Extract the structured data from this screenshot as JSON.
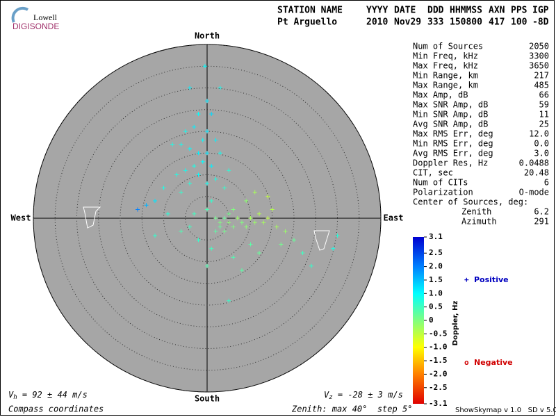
{
  "logo": {
    "top": "Lowell",
    "bottom": "DIGISONDE"
  },
  "header": {
    "columns": [
      "STATION NAME",
      "YYYY",
      "DATE",
      "DDD",
      "HHMMSS",
      "AXN",
      "PPS",
      "IGP"
    ],
    "values": [
      "Pt Arguello",
      "2010",
      "Nov29",
      "333",
      "150800",
      "417",
      "100",
      "-8D"
    ]
  },
  "stats": [
    [
      "Num of Sources",
      "2050"
    ],
    [
      "Min Freq, kHz",
      "3300"
    ],
    [
      "Max Freq, kHz",
      "3650"
    ],
    [
      "Min Range, km",
      "217"
    ],
    [
      "Max Range, km",
      "485"
    ],
    [
      "Max Amp, dB",
      "66"
    ],
    [
      "Max SNR Amp, dB",
      "59"
    ],
    [
      "Min SNR Amp, dB",
      "11"
    ],
    [
      "Avg SNR Amp, dB",
      "25"
    ],
    [
      "Max RMS Err, deg",
      "12.0"
    ],
    [
      "Min RMS Err, deg",
      "0.0"
    ],
    [
      "Avg RMS Err, deg",
      "3.0"
    ],
    [
      "Doppler Res, Hz",
      "0.0488"
    ],
    [
      "CIT, sec",
      "20.48"
    ],
    [
      "Num of CITs",
      "6"
    ],
    [
      "Polarization",
      "O-mode"
    ]
  ],
  "center": {
    "title": "Center of Sources, deg:",
    "rows": [
      [
        "Zenith",
        "6.2"
      ],
      [
        "Azimuth",
        "291"
      ]
    ]
  },
  "footer": {
    "vh": {
      "symbol": "V",
      "sub": "h",
      "text": " = 92 ± 44 m/s"
    },
    "vz": {
      "symbol": "V",
      "sub": "z",
      "text": " = -28 ± 3 m/s"
    },
    "coords": "Compass coordinates",
    "zenith": "Zenith: max 40°  step 5°",
    "version": "ShowSkymap v 1.0   SD v 5.0"
  },
  "chart_data": {
    "type": "skymap",
    "directions": {
      "north": "North",
      "south": "South",
      "east": "East",
      "west": "West"
    },
    "rlim": [
      0,
      40
    ],
    "rticks": [
      5,
      10,
      15,
      20,
      25,
      30,
      35,
      40
    ],
    "points": {
      "x": [
        -0.5,
        3,
        -4,
        0,
        -2,
        1,
        -3,
        -5,
        0,
        -1,
        2,
        -6,
        -8,
        -4,
        -2,
        0,
        3,
        -1,
        1,
        -3,
        -5,
        5,
        -7,
        -2,
        2,
        0,
        -4,
        -10,
        4,
        -6,
        -12,
        -14,
        -16,
        2,
        3,
        4,
        5,
        6,
        3,
        4,
        7,
        8,
        2,
        5,
        6,
        9,
        10,
        11,
        12,
        13,
        14,
        15,
        16,
        18,
        20,
        17,
        10,
        12,
        6,
        1,
        -2,
        -4,
        0,
        8,
        5,
        22,
        29,
        30,
        -6,
        -3,
        0,
        1,
        9,
        11,
        14,
        -9,
        24,
        -12
      ],
      "y": [
        35,
        30,
        30,
        27,
        24,
        24,
        21,
        20,
        20,
        18,
        18,
        17,
        17,
        16,
        15,
        15,
        15,
        13,
        12,
        12,
        11,
        11,
        10,
        10,
        9,
        8,
        8,
        7,
        7,
        6,
        4,
        3,
        2,
        0,
        -1,
        0,
        -1,
        -2,
        -2,
        -3,
        0,
        -1,
        -3,
        1,
        2,
        -2,
        0,
        -1,
        1,
        -1,
        0,
        2,
        -2,
        -3,
        -5,
        -6,
        -6,
        -8,
        -9,
        -7,
        -5,
        -2,
        -11,
        -12,
        -19,
        -8,
        -7,
        -4,
        -3,
        1,
        2,
        4,
        4,
        6,
        5,
        1,
        -11,
        -4
      ],
      "doppler": [
        1.0,
        0.9,
        1.1,
        1.2,
        1.0,
        1.3,
        1.1,
        0.9,
        1.2,
        1.0,
        1.1,
        0.9,
        0.8,
        1.0,
        1.1,
        1.2,
        0.9,
        1.0,
        1.1,
        0.8,
        0.9,
        0.7,
        0.8,
        1.0,
        0.8,
        0.9,
        0.7,
        0.8,
        0.6,
        0.6,
        1.2,
        1.6,
        2.0,
        0.1,
        0.0,
        0.2,
        -0.1,
        0.0,
        0.2,
        0.1,
        -0.2,
        0.0,
        0.3,
        0.1,
        0.0,
        -0.1,
        -0.3,
        -0.2,
        -0.4,
        -0.3,
        -0.5,
        -0.4,
        -0.3,
        -0.2,
        0.2,
        0.1,
        0.3,
        0.2,
        0.4,
        0.5,
        0.6,
        0.5,
        0.4,
        0.3,
        0.6,
        0.5,
        0.8,
        0.7,
        0.4,
        0.5,
        0.4,
        0.6,
        -0.1,
        -0.3,
        -0.5,
        0.7,
        0.6,
        0.6
      ]
    },
    "colorbar": {
      "label": "Doppler, Hz",
      "lim": [
        -3.1,
        3.1
      ],
      "ticks": [
        3.1,
        2.5,
        {
          "value": 2.0,
          "label": "2.0"
        },
        1.5,
        {
          "value": 1.0,
          "label": "1.0"
        },
        0.5,
        0,
        -0.5,
        {
          "value": -1.0,
          "label": "-1.0"
        },
        -1.5,
        {
          "value": -2.0,
          "label": "-2.0"
        },
        -2.5,
        -3.1
      ],
      "colorscale": [
        [
          -3.1,
          "#e00000"
        ],
        [
          -2.0,
          "#ff8000"
        ],
        [
          -1.0,
          "#ffff00"
        ],
        [
          0,
          "#80ff80"
        ],
        [
          1.0,
          "#00ffff"
        ],
        [
          2.0,
          "#0080ff"
        ],
        [
          3.1,
          "#0000d0"
        ]
      ]
    },
    "legend": [
      {
        "name": "Positive",
        "symbol": "+",
        "color": "#0000c0"
      },
      {
        "name": "Negative",
        "symbol": "o",
        "color": "#d00000"
      }
    ]
  }
}
